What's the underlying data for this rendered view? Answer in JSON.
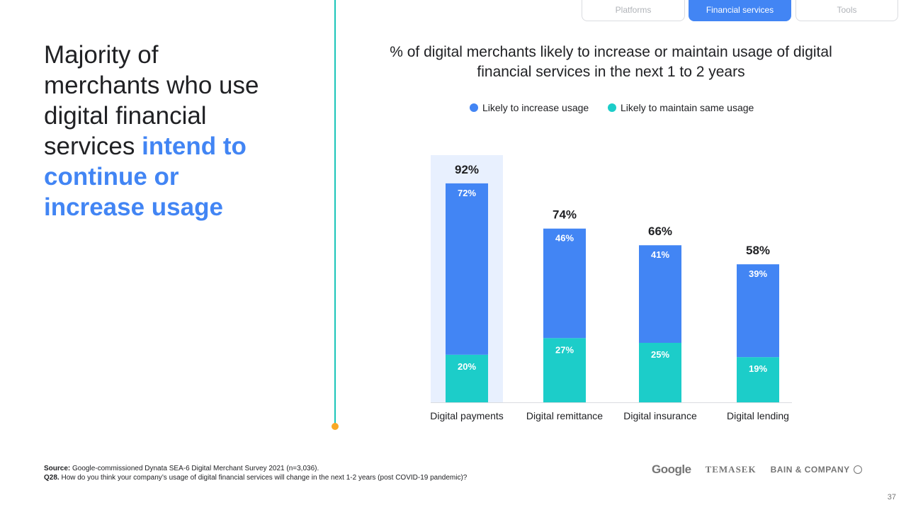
{
  "tabs": [
    {
      "label": "Platforms",
      "active": false
    },
    {
      "label": "Financial services",
      "active": true
    },
    {
      "label": "Tools",
      "active": false
    }
  ],
  "headline": {
    "text": "Majority of merchants who use digital financial services",
    "highlight": "intend to continue or increase usage"
  },
  "colors": {
    "increase": "#4285f4",
    "maintain": "#1ccdc9",
    "highlight_band": "#e8f0fe",
    "accent_line": "#1bc5b9",
    "accent_dot": "#f9a825"
  },
  "chart_data": {
    "type": "bar",
    "stacked": true,
    "title": "% of digital merchants likely to increase or maintain usage of digital financial services in the next 1 to 2 years",
    "categories": [
      "Digital payments",
      "Digital remittance",
      "Digital insurance",
      "Digital lending"
    ],
    "series": [
      {
        "name": "Likely to maintain same usage",
        "values": [
          20,
          27,
          25,
          19
        ]
      },
      {
        "name": "Likely to increase usage",
        "values": [
          72,
          46,
          41,
          39
        ]
      }
    ],
    "totals": [
      92,
      74,
      66,
      58
    ],
    "unit": "%",
    "highlighted_category": "Digital payments",
    "legend": "top",
    "grid": false,
    "ylim": [
      0,
      100
    ]
  },
  "footnote": {
    "source_label": "Source:",
    "source_text": " Google-commissioned Dynata SEA-6 Digital Merchant Survey 2021 (n=3,036).",
    "question_label": "Q28.",
    "question_text": " How do you think your company’s usage of digital financial services will change in the next 1-2 years (post COVID-19 pandemic)?"
  },
  "logos": {
    "google": "Google",
    "temasek": "TEMASEK",
    "bain": "BAIN & COMPANY"
  },
  "page_number": "37"
}
